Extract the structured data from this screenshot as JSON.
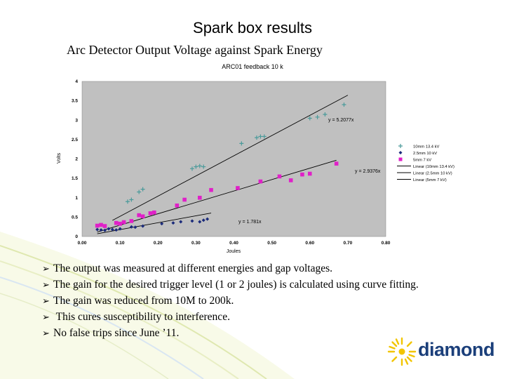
{
  "slide": {
    "title": "Spark box results",
    "subtitle": "Arc Detector Output Voltage against Spark Energy",
    "bullets": [
      "The output was measured at different energies and gap voltages.",
      "The gain for the desired trigger level (1 or 2 joules) is calculated using curve fitting.",
      "The gain was reduced from 10M to 200k.",
      " This cures susceptibility to interference.",
      "No false trips since June ’11."
    ],
    "logo_text": "diamond"
  },
  "colors": {
    "plot_bg": "#c0c0c0",
    "series_10mm": "#4a9a9a",
    "series_25mm": "#1a2a7a",
    "series_5mm": "#e020c8",
    "brand_blue": "#1b3f7a",
    "brand_yellow": "#f2c500"
  },
  "chart_data": {
    "type": "scatter",
    "title": "ARC01 feedback 10 k",
    "xlabel": "Joules",
    "ylabel": "Volts",
    "xlim": [
      0,
      0.8
    ],
    "ylim": [
      0,
      4
    ],
    "xticks": [
      "0.00",
      "0.10",
      "0.20",
      "0.30",
      "0.40",
      "0.50",
      "0.60",
      "0.70",
      "0.80"
    ],
    "yticks": [
      "0",
      "0.5",
      "1",
      "1.5",
      "2",
      "2.5",
      "3",
      "3.5",
      "4"
    ],
    "grid": false,
    "legend_position": "right",
    "series": [
      {
        "name": "10mm 13.4 kV",
        "marker": "plus",
        "color_key": "series_10mm",
        "points": [
          [
            0.12,
            0.9
          ],
          [
            0.13,
            0.95
          ],
          [
            0.15,
            1.15
          ],
          [
            0.16,
            1.22
          ],
          [
            0.29,
            1.75
          ],
          [
            0.3,
            1.8
          ],
          [
            0.31,
            1.82
          ],
          [
            0.32,
            1.8
          ],
          [
            0.42,
            2.4
          ],
          [
            0.46,
            2.55
          ],
          [
            0.47,
            2.58
          ],
          [
            0.48,
            2.58
          ],
          [
            0.6,
            3.05
          ],
          [
            0.62,
            3.08
          ],
          [
            0.64,
            3.15
          ],
          [
            0.69,
            3.4
          ]
        ]
      },
      {
        "name": "2.5mm 10 kV",
        "marker": "diamond",
        "color_key": "series_25mm",
        "points": [
          [
            0.04,
            0.18
          ],
          [
            0.05,
            0.17
          ],
          [
            0.06,
            0.16
          ],
          [
            0.07,
            0.2
          ],
          [
            0.08,
            0.18
          ],
          [
            0.09,
            0.17
          ],
          [
            0.1,
            0.2
          ],
          [
            0.13,
            0.25
          ],
          [
            0.14,
            0.24
          ],
          [
            0.16,
            0.27
          ],
          [
            0.21,
            0.33
          ],
          [
            0.24,
            0.35
          ],
          [
            0.26,
            0.38
          ],
          [
            0.29,
            0.4
          ],
          [
            0.31,
            0.38
          ],
          [
            0.32,
            0.42
          ],
          [
            0.33,
            0.45
          ]
        ]
      },
      {
        "name": "5mm 7 kV",
        "marker": "square",
        "color_key": "series_5mm",
        "points": [
          [
            0.04,
            0.28
          ],
          [
            0.05,
            0.3
          ],
          [
            0.06,
            0.27
          ],
          [
            0.09,
            0.35
          ],
          [
            0.1,
            0.33
          ],
          [
            0.11,
            0.37
          ],
          [
            0.13,
            0.4
          ],
          [
            0.15,
            0.55
          ],
          [
            0.16,
            0.52
          ],
          [
            0.18,
            0.6
          ],
          [
            0.19,
            0.62
          ],
          [
            0.25,
            0.8
          ],
          [
            0.27,
            0.95
          ],
          [
            0.31,
            1.0
          ],
          [
            0.34,
            1.2
          ],
          [
            0.41,
            1.25
          ],
          [
            0.47,
            1.42
          ],
          [
            0.52,
            1.55
          ],
          [
            0.55,
            1.45
          ],
          [
            0.58,
            1.6
          ],
          [
            0.6,
            1.62
          ],
          [
            0.67,
            1.88
          ]
        ]
      }
    ],
    "trendlines": [
      {
        "name": "Linear (10mm 13.4 kV)",
        "color_key": "series_10mm_line",
        "slope": 5.2077,
        "x_range": [
          0.08,
          0.7
        ]
      },
      {
        "name": "Linear (2.5mm 10 kV)",
        "color_key": "series_25mm_line",
        "slope": 1.781,
        "x_range": [
          0.04,
          0.34
        ]
      },
      {
        "name": "Linear (5mm 7 kV)",
        "color_key": "series_5mm_line",
        "slope": 2.9376,
        "x_range": [
          0.04,
          0.67
        ]
      }
    ],
    "annotations": [
      "y = 5.2077x",
      "y = 2.9376x",
      "y = 1.781x"
    ]
  }
}
